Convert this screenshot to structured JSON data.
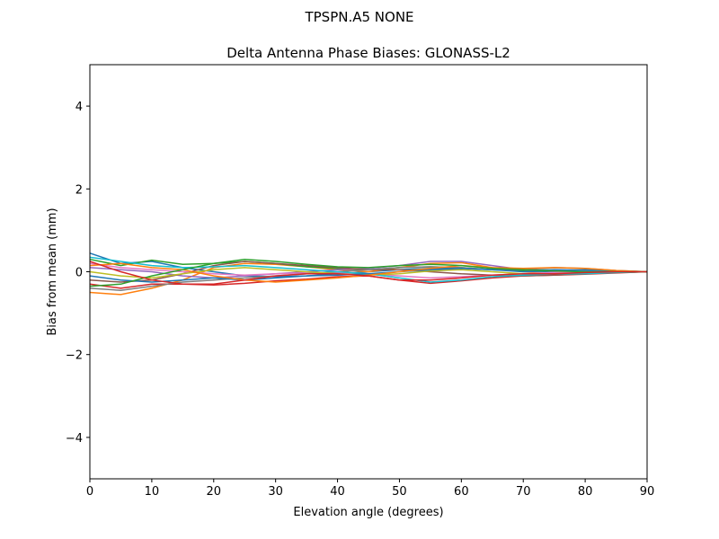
{
  "chart_data": {
    "type": "line",
    "suptitle": "TPSPN.A5        NONE",
    "title": "Delta Antenna Phase Biases: GLONASS-L2",
    "xlabel": "Elevation angle (degrees)",
    "ylabel": "Bias from mean (mm)",
    "xlim": [
      0,
      90
    ],
    "ylim": [
      -5,
      5
    ],
    "xticks": [
      "0",
      "10",
      "20",
      "30",
      "40",
      "50",
      "60",
      "70",
      "80",
      "90"
    ],
    "yticks": [
      "−4",
      "−2",
      "0",
      "2",
      "4"
    ],
    "grid": false,
    "x": [
      0,
      5,
      10,
      15,
      20,
      25,
      30,
      35,
      40,
      45,
      50,
      55,
      60,
      65,
      70,
      75,
      80,
      85,
      90
    ],
    "colors": [
      "#1f77b4",
      "#ff7f0e",
      "#2ca02c",
      "#d62728",
      "#9467bd",
      "#8c564b",
      "#e377c2",
      "#7f7f7f",
      "#bcbd22",
      "#17becf"
    ],
    "series": [
      {
        "values": [
          0.45,
          0.2,
          0.25,
          0.1,
          0,
          -0.1,
          -0.12,
          -0.1,
          -0.05,
          0,
          0.05,
          0.08,
          0.08,
          0.05,
          0.03,
          0.05,
          0.04,
          0.02,
          0
        ]
      },
      {
        "values": [
          -0.5,
          -0.55,
          -0.4,
          -0.2,
          0.1,
          0.2,
          0.18,
          0.12,
          0.05,
          0,
          0.1,
          0.2,
          0.22,
          0.1,
          0,
          -0.05,
          -0.05,
          -0.02,
          0
        ]
      },
      {
        "values": [
          0.3,
          0.15,
          0.28,
          0.18,
          0.2,
          0.25,
          0.2,
          0.12,
          0.08,
          0.05,
          0.1,
          0.12,
          0.1,
          0.05,
          0.02,
          0,
          0,
          0,
          0
        ]
      },
      {
        "values": [
          -0.3,
          -0.4,
          -0.3,
          -0.3,
          -0.32,
          -0.28,
          -0.22,
          -0.18,
          -0.12,
          -0.1,
          -0.2,
          -0.28,
          -0.22,
          -0.15,
          -0.1,
          -0.08,
          -0.06,
          -0.03,
          0
        ]
      },
      {
        "values": [
          0.1,
          0.05,
          0.0,
          -0.1,
          -0.15,
          -0.1,
          -0.05,
          0,
          0.05,
          0.08,
          0.15,
          0.25,
          0.25,
          0.15,
          0.05,
          0.0,
          -0.02,
          0,
          0
        ]
      },
      {
        "values": [
          -0.2,
          -0.25,
          -0.2,
          -0.05,
          0.15,
          0.25,
          0.2,
          0.15,
          0.1,
          0.05,
          0.05,
          0.0,
          -0.05,
          -0.08,
          -0.1,
          -0.08,
          -0.05,
          -0.02,
          0
        ]
      },
      {
        "values": [
          0.2,
          0.1,
          0.05,
          0.0,
          -0.05,
          -0.08,
          -0.05,
          -0.03,
          -0.02,
          -0.05,
          -0.1,
          -0.15,
          -0.12,
          -0.08,
          -0.05,
          -0.02,
          0,
          0,
          0
        ]
      },
      {
        "values": [
          -0.4,
          -0.45,
          -0.35,
          -0.25,
          -0.2,
          -0.15,
          -0.1,
          -0.05,
          0,
          0.05,
          0.1,
          0.12,
          0.1,
          0.05,
          0.05,
          0.1,
          0.08,
          0.03,
          0
        ]
      },
      {
        "values": [
          0.0,
          -0.1,
          -0.15,
          -0.05,
          0.05,
          0.1,
          0.05,
          0.0,
          -0.05,
          -0.08,
          -0.05,
          0.02,
          0.05,
          0.0,
          -0.05,
          -0.05,
          -0.03,
          -0.01,
          0
        ]
      },
      {
        "values": [
          0.35,
          0.25,
          0.15,
          0.1,
          0.12,
          0.15,
          0.1,
          0.05,
          0.0,
          -0.05,
          -0.15,
          -0.25,
          -0.2,
          -0.12,
          -0.08,
          -0.05,
          -0.05,
          -0.02,
          0
        ]
      },
      {
        "values": [
          -0.1,
          -0.2,
          -0.25,
          -0.2,
          -0.15,
          -0.2,
          -0.15,
          -0.1,
          -0.08,
          -0.05,
          0.0,
          0.05,
          0.08,
          0.05,
          0.0,
          0.02,
          0.05,
          0.02,
          0
        ]
      },
      {
        "values": [
          0.15,
          0.2,
          0.1,
          0.05,
          -0.1,
          -0.2,
          -0.25,
          -0.2,
          -0.15,
          -0.08,
          0.0,
          0.08,
          0.15,
          0.1,
          0.08,
          0.1,
          0.08,
          0.03,
          0
        ]
      },
      {
        "values": [
          -0.35,
          -0.3,
          -0.1,
          0.05,
          0.2,
          0.3,
          0.25,
          0.18,
          0.12,
          0.1,
          0.15,
          0.18,
          0.15,
          0.08,
          0.05,
          0.02,
          0.0,
          0,
          0
        ]
      },
      {
        "values": [
          0.25,
          0.0,
          -0.2,
          -0.3,
          -0.3,
          -0.2,
          -0.1,
          -0.05,
          -0.05,
          -0.1,
          -0.2,
          -0.2,
          -0.15,
          -0.08,
          -0.05,
          -0.05,
          -0.02,
          0,
          0
        ]
      }
    ]
  }
}
